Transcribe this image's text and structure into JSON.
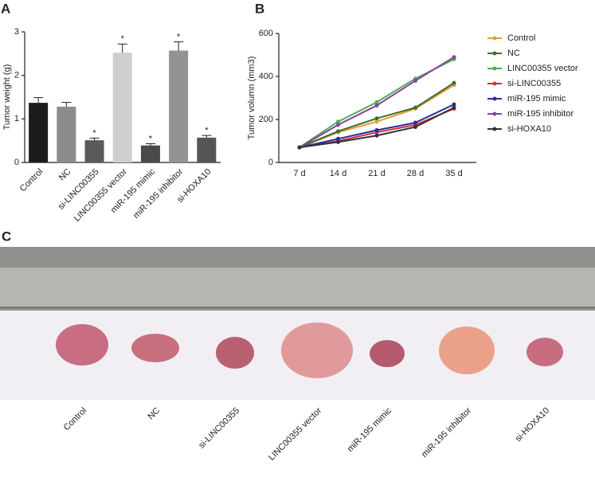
{
  "chart_data": [
    {
      "type": "bar",
      "panel": "A",
      "ylabel": "Tumor weight (g)",
      "categories": [
        "Control",
        "NC",
        "si-LINC00355",
        "LINC00355 vector",
        "miR-195 mimic",
        "miR-195 inhibitor",
        "si-HOXA10"
      ],
      "values": [
        1.37,
        1.28,
        0.51,
        2.52,
        0.39,
        2.57,
        0.57
      ],
      "errors": [
        0.12,
        0.1,
        0.05,
        0.2,
        0.04,
        0.2,
        0.05
      ],
      "significance": [
        null,
        null,
        "*",
        "*",
        "*",
        "*",
        "*"
      ],
      "colors": [
        "#1c1c1c",
        "#8c8c8c",
        "#5a5a5a",
        "#cfcfcf",
        "#4a4a4a",
        "#939393",
        "#555555"
      ],
      "ylim": [
        0,
        3
      ],
      "yticks": [
        0,
        1,
        2,
        3
      ]
    },
    {
      "type": "line",
      "panel": "B",
      "ylabel": "Tumor volumn (mm3)",
      "categories": [
        "7 d",
        "14 d",
        "21 d",
        "28 d",
        "35 d"
      ],
      "ylim": [
        0,
        600
      ],
      "yticks": [
        0,
        200,
        400,
        600
      ],
      "series": [
        {
          "name": "Control",
          "color": "#e89a3c",
          "values": [
            70,
            140,
            190,
            250,
            360
          ]
        },
        {
          "name": "NC",
          "color": "#3b6e2b",
          "values": [
            70,
            145,
            205,
            255,
            370
          ]
        },
        {
          "name": "LINC00355 vector",
          "color": "#4caf50",
          "values": [
            70,
            190,
            280,
            390,
            480
          ]
        },
        {
          "name": "si-LINC00355",
          "color": "#d0303f",
          "values": [
            70,
            100,
            140,
            175,
            250
          ]
        },
        {
          "name": "miR-195 mimic",
          "color": "#22309e",
          "values": [
            70,
            110,
            150,
            185,
            270
          ]
        },
        {
          "name": "miR-195 inhibitor",
          "color": "#8a3fa6",
          "values": [
            70,
            175,
            265,
            380,
            490
          ]
        },
        {
          "name": "si-HOXA10",
          "color": "#333333",
          "values": [
            70,
            95,
            125,
            165,
            255
          ]
        }
      ]
    }
  ],
  "photo": {
    "panel": "C",
    "labels": [
      "Control",
      "NC",
      "si-LINC00355",
      "LINC00355 vector",
      "miR-195 mimic",
      "miR-195 inhibitor",
      "si-HOXA10"
    ]
  }
}
